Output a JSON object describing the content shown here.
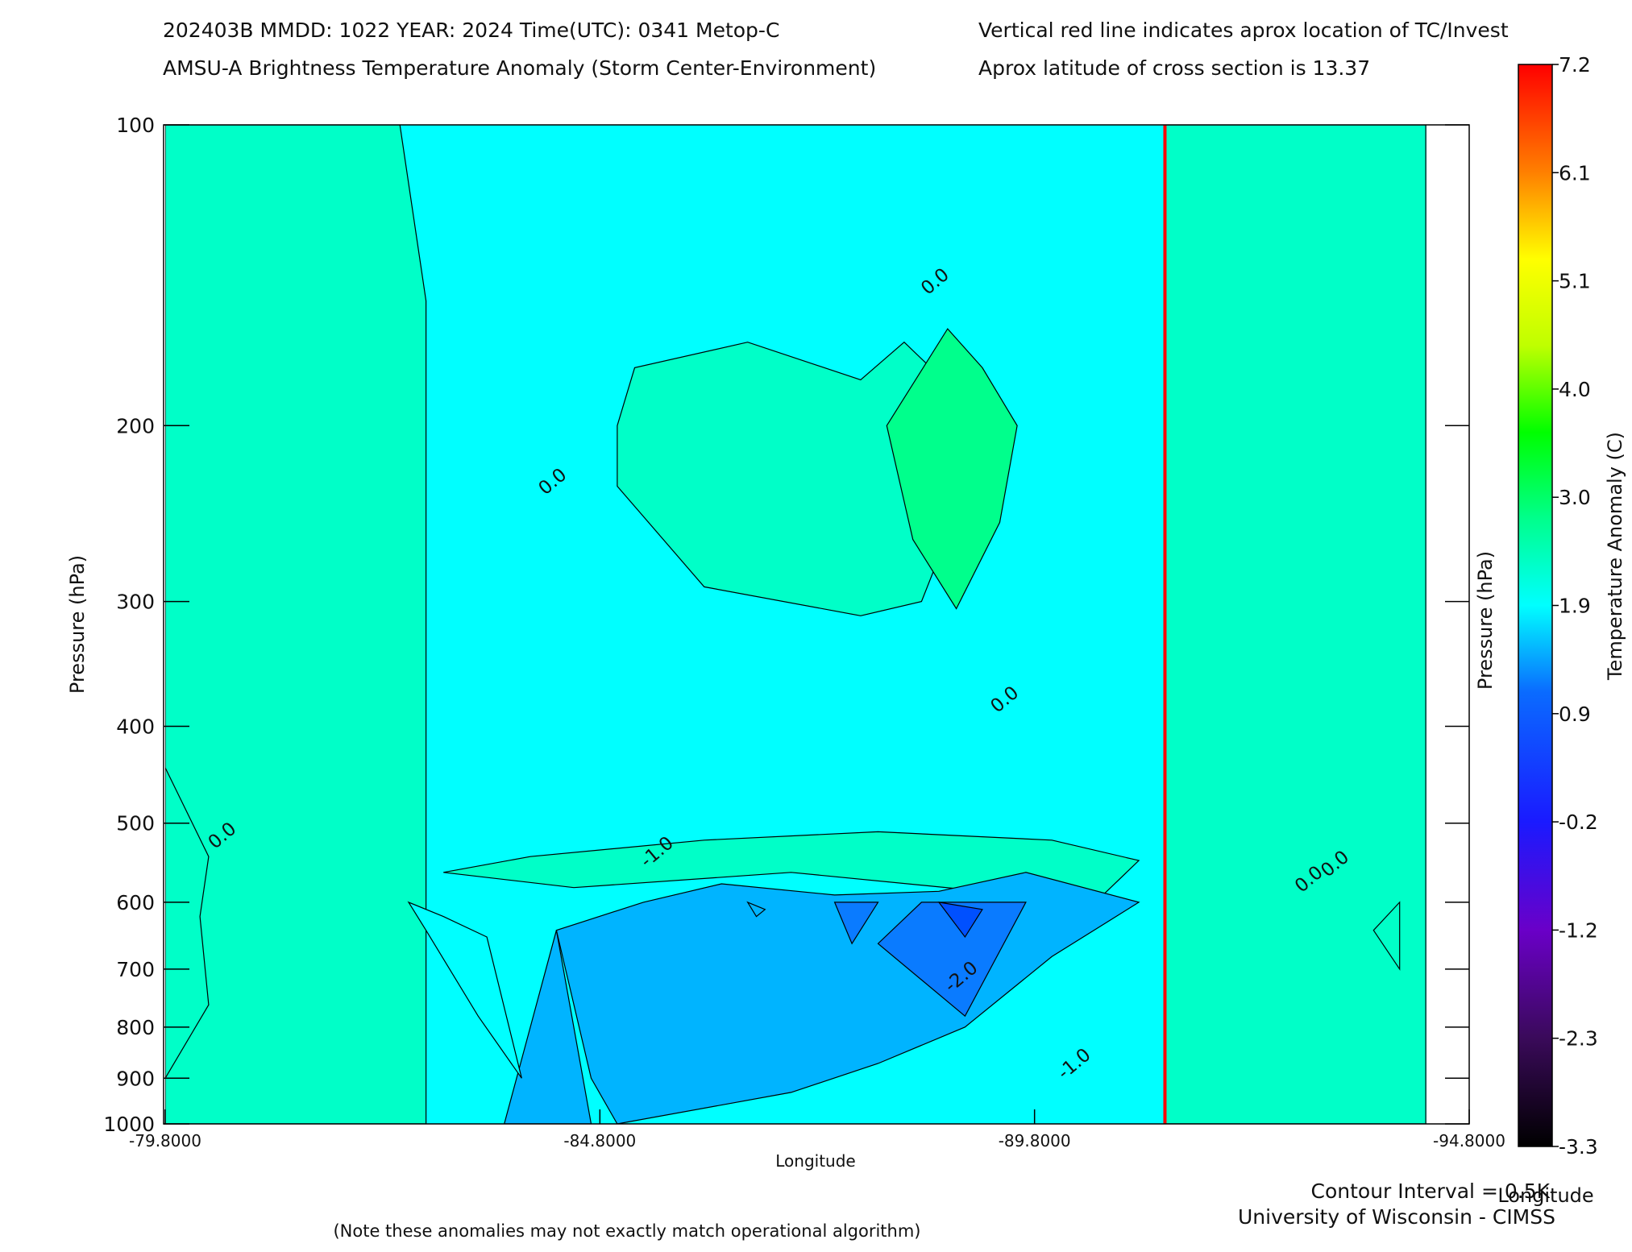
{
  "header": {
    "line1_left": "202403B  MMDD: 1022 YEAR: 2024 Time(UTC): 0341 Metop-C",
    "line2_left": "AMSU-A Brightness Temperature Anomaly (Storm Center-Environment)",
    "line1_right": "Vertical red line indicates aprox location of TC/Invest",
    "line2_right": "Aprox latitude of cross section is 13.37"
  },
  "footer": {
    "contour_interval": "Contour Interval = 0.5K",
    "credit": "University of Wisconsin - CIMSS",
    "note": "(Note these anomalies may not exactly match operational algorithm)",
    "colorbar_axis_label": "Longitude"
  },
  "colors": {
    "note": "#ff3b1f",
    "tc_line": "#ff0000",
    "level_minus2": "#0a7bff",
    "level_minus1": "#00b4ff",
    "level_0": "#00ffff",
    "level_plus1": "#00ffc8",
    "level_plus2": "#00ff8c"
  },
  "chart_data": {
    "type": "contour",
    "xlabel": "Longitude",
    "ylabel": "Pressure (hPa)",
    "ylabel_right": "Pressure (hPa)",
    "x_tick_labels": [
      "-79.8000",
      "-84.8000",
      "-89.8000",
      "-94.8000"
    ],
    "x_tick_values": [
      -79.8,
      -84.8,
      -89.8,
      -94.8
    ],
    "xlim": [
      -79.8,
      -94.8
    ],
    "y_tick_labels": [
      "100",
      "200",
      "300",
      "400",
      "500",
      "600",
      "700",
      "800",
      "900",
      "1000"
    ],
    "y_tick_values": [
      100,
      200,
      300,
      400,
      500,
      600,
      700,
      800,
      900,
      1000
    ],
    "ylim": [
      100,
      1000
    ],
    "y_scale": "log",
    "contour_interval_K": 0.5,
    "contour_labels": [
      {
        "text": "0.0",
        "lon": -80.5,
        "p": 520
      },
      {
        "text": "-1.0",
        "lon": -85.5,
        "p": 540
      },
      {
        "text": "0.0",
        "lon": -84.3,
        "p": 230
      },
      {
        "text": "0.0",
        "lon": -88.7,
        "p": 145
      },
      {
        "text": "0.0",
        "lon": -89.5,
        "p": 380
      },
      {
        "text": "-2.0",
        "lon": -89.0,
        "p": 720
      },
      {
        "text": "-1.0",
        "lon": -90.3,
        "p": 880
      },
      {
        "text": "0.0",
        "lon": -93.0,
        "p": 575
      },
      {
        "text": "0.0",
        "lon": -93.3,
        "p": 555
      }
    ],
    "tc_longitude": -91.3,
    "colorbar": {
      "label": "Temperature Anomaly (C)",
      "tick_labels": [
        "7.2",
        "6.1",
        "5.1",
        "4.0",
        "3.0",
        "1.9",
        "0.9",
        "-0.2",
        "-1.2",
        "-2.3",
        "-3.3"
      ],
      "range": [
        -3.3,
        7.2
      ]
    },
    "regions": [
      {
        "level": 1,
        "points": [
          [
            -79.8,
            100
          ],
          [
            -79.8,
            1000
          ],
          [
            -82.8,
            1000
          ],
          [
            -82.8,
            150
          ],
          [
            -82.5,
            100
          ]
        ]
      },
      {
        "level": 1,
        "points": [
          [
            -85.0,
            200
          ],
          [
            -85.2,
            175
          ],
          [
            -86.5,
            165
          ],
          [
            -87.8,
            180
          ],
          [
            -88.3,
            165
          ],
          [
            -89.3,
            200
          ],
          [
            -88.5,
            300
          ],
          [
            -87.8,
            310
          ],
          [
            -86.0,
            290
          ],
          [
            -85.0,
            230
          ]
        ]
      },
      {
        "level": 2,
        "points": [
          [
            -88.1,
            200
          ],
          [
            -88.8,
            160
          ],
          [
            -89.2,
            175
          ],
          [
            -89.6,
            200
          ],
          [
            -89.4,
            250
          ],
          [
            -88.9,
            305
          ],
          [
            -88.4,
            260
          ]
        ]
      },
      {
        "level": 1,
        "points": [
          [
            -91.3,
            100
          ],
          [
            -94.3,
            100
          ],
          [
            -94.3,
            1000
          ],
          [
            -91.3,
            1000
          ]
        ]
      },
      {
        "level": 1,
        "points": [
          [
            -79.8,
            440
          ],
          [
            -80.3,
            540
          ],
          [
            -80.2,
            620
          ],
          [
            -80.3,
            760
          ],
          [
            -79.8,
            900
          ]
        ]
      },
      {
        "level": 1,
        "points": [
          [
            -83.0,
            560
          ],
          [
            -84.0,
            540
          ],
          [
            -86.0,
            520
          ],
          [
            -88.0,
            510
          ],
          [
            -90.0,
            520
          ],
          [
            -91.0,
            545
          ],
          [
            -90.5,
            600
          ],
          [
            -87.0,
            560
          ],
          [
            -84.5,
            580
          ]
        ]
      },
      {
        "level": -1,
        "points": [
          [
            -85.3,
            600
          ],
          [
            -86.2,
            575
          ],
          [
            -87.5,
            590
          ],
          [
            -88.7,
            585
          ],
          [
            -89.7,
            560
          ],
          [
            -91.0,
            600
          ],
          [
            -90.0,
            680
          ],
          [
            -89.0,
            800
          ],
          [
            -88.0,
            870
          ],
          [
            -87.0,
            930
          ],
          [
            -85.0,
            1000
          ],
          [
            -84.7,
            900
          ],
          [
            -84.3,
            640
          ]
        ]
      },
      {
        "level": -1,
        "points": [
          [
            -84.3,
            640
          ],
          [
            -84.7,
            1000
          ],
          [
            -83.7,
            1000
          ]
        ]
      },
      {
        "level": -2,
        "points": [
          [
            -88.5,
            600
          ],
          [
            -89.7,
            600
          ],
          [
            -89.0,
            780
          ],
          [
            -88.0,
            660
          ]
        ]
      },
      {
        "level": -2,
        "points": [
          [
            -87.5,
            600
          ],
          [
            -88.0,
            600
          ],
          [
            -87.7,
            660
          ]
        ]
      },
      {
        "level": -3,
        "points": [
          [
            -88.7,
            600
          ],
          [
            -89.2,
            610
          ],
          [
            -89.0,
            650
          ]
        ]
      },
      {
        "level": -1,
        "points": [
          [
            -86.5,
            600
          ],
          [
            -86.7,
            610
          ],
          [
            -86.6,
            620
          ]
        ]
      },
      {
        "level": 0,
        "points": [
          [
            -82.6,
            600
          ],
          [
            -83.0,
            620
          ],
          [
            -83.5,
            650
          ],
          [
            -83.9,
            900
          ],
          [
            -83.4,
            780
          ],
          [
            -82.8,
            640
          ]
        ]
      },
      {
        "level": 1,
        "points": [
          [
            -93.7,
            640
          ],
          [
            -94.0,
            600
          ],
          [
            -94.0,
            700
          ]
        ]
      }
    ]
  }
}
